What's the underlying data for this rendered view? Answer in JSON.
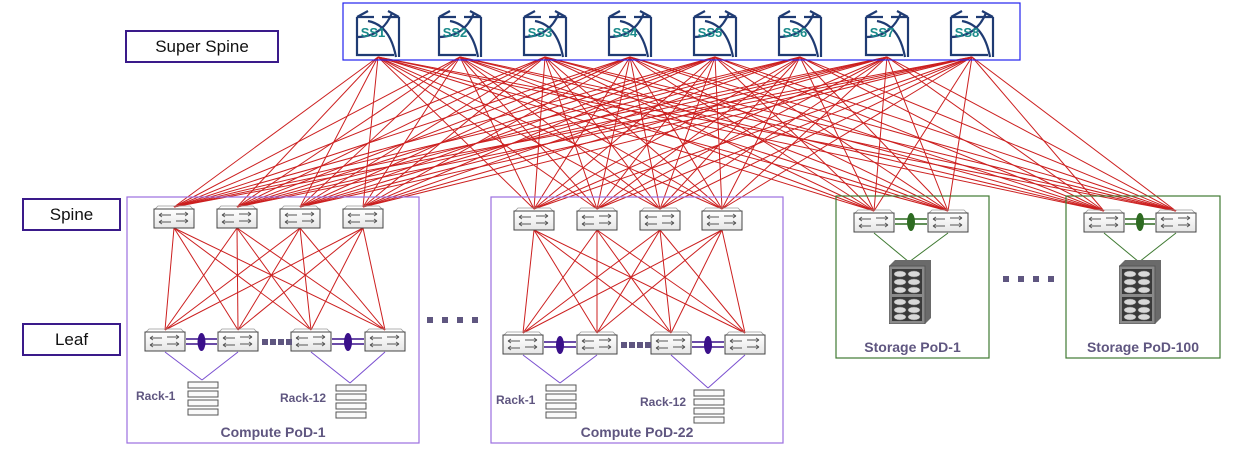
{
  "tiers": {
    "super_spine": "Super Spine",
    "spine": "Spine",
    "leaf": "Leaf"
  },
  "super_spine_switches": [
    "SS1",
    "SS2",
    "SS3",
    "SS4",
    "SS5",
    "SS6",
    "SS7",
    "SS8"
  ],
  "compute_pods": [
    {
      "name": "Compute PoD-1",
      "racks": [
        "Rack-1",
        "Rack-12"
      ]
    },
    {
      "name": "Compute PoD-22",
      "racks": [
        "Rack-1",
        "Rack-12"
      ]
    }
  ],
  "storage_pods": [
    {
      "name": "Storage PoD-1"
    },
    {
      "name": "Storage PoD-100"
    }
  ],
  "colors": {
    "fabric_link": "#cc1f1f",
    "compute_pod_border": "#9b6fe0",
    "compute_lag": "#3a108a",
    "storage_pod_border": "#3f7a32",
    "storage_lag": "#2e6b22",
    "tier_label_border": "#3a1a8a",
    "super_spine_border": "#2222ee",
    "ss_icon": "#1f3b73",
    "ss_text": "#1a8a8a",
    "pod_text": "#5f5680"
  }
}
